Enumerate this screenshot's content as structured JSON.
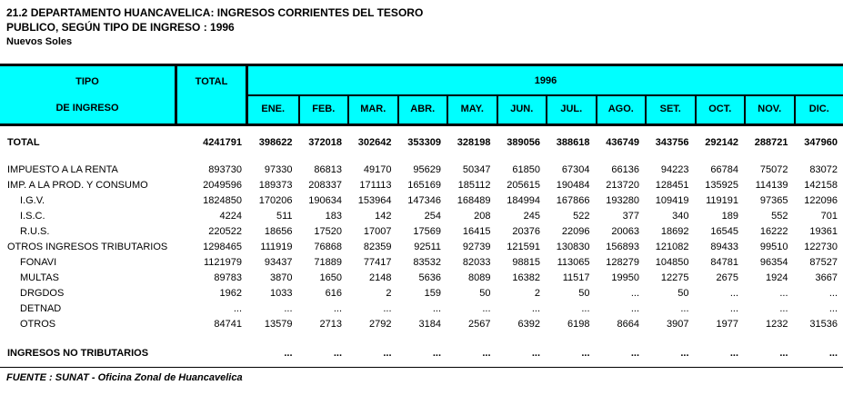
{
  "title": {
    "line1": "21.2 DEPARTAMENTO HUANCAVELICA: INGRESOS CORRIENTES DEL TESORO",
    "line2": "PUBLICO, SEGÚN TIPO DE INGRESO : 1996",
    "unit": "Nuevos Soles"
  },
  "colors": {
    "header_bg": "#00FFFF",
    "border": "#000000",
    "text": "#000000"
  },
  "table": {
    "header": {
      "tipo_line1": "TIPO",
      "tipo_line2": "DE INGRESO",
      "total_label": "TOTAL",
      "year": "1996",
      "months": [
        "ENE.",
        "FEB.",
        "MAR.",
        "ABR.",
        "MAY.",
        "JUN.",
        "JUL.",
        "AGO.",
        "SET.",
        "OCT.",
        "NOV.",
        "DIC."
      ]
    },
    "rows": [
      {
        "label": "TOTAL",
        "bold": true,
        "indent": false,
        "total": "4241791",
        "values": [
          "398622",
          "372018",
          "302642",
          "353309",
          "328198",
          "389056",
          "388618",
          "436749",
          "343756",
          "292142",
          "288721",
          "347960"
        ]
      },
      {
        "label": "IMPUESTO A LA RENTA",
        "bold": false,
        "indent": false,
        "total": "893730",
        "values": [
          "97330",
          "86813",
          "49170",
          "95629",
          "50347",
          "61850",
          "67304",
          "66136",
          "94223",
          "66784",
          "75072",
          "83072"
        ]
      },
      {
        "label": "IMP. A LA PROD. Y CONSUMO",
        "bold": false,
        "indent": false,
        "total": "2049596",
        "values": [
          "189373",
          "208337",
          "171113",
          "165169",
          "185112",
          "205615",
          "190484",
          "213720",
          "128451",
          "135925",
          "114139",
          "142158"
        ]
      },
      {
        "label": "I.G.V.",
        "bold": false,
        "indent": true,
        "total": "1824850",
        "values": [
          "170206",
          "190634",
          "153964",
          "147346",
          "168489",
          "184994",
          "167866",
          "193280",
          "109419",
          "119191",
          "97365",
          "122096"
        ]
      },
      {
        "label": "I.S.C.",
        "bold": false,
        "indent": true,
        "total": "4224",
        "values": [
          "511",
          "183",
          "142",
          "254",
          "208",
          "245",
          "522",
          "377",
          "340",
          "189",
          "552",
          "701"
        ]
      },
      {
        "label": "R.U.S.",
        "bold": false,
        "indent": true,
        "total": "220522",
        "values": [
          "18656",
          "17520",
          "17007",
          "17569",
          "16415",
          "20376",
          "22096",
          "20063",
          "18692",
          "16545",
          "16222",
          "19361"
        ]
      },
      {
        "label": "OTROS INGRESOS TRIBUTARIOS",
        "bold": false,
        "indent": false,
        "total": "1298465",
        "values": [
          "111919",
          "76868",
          "82359",
          "92511",
          "92739",
          "121591",
          "130830",
          "156893",
          "121082",
          "89433",
          "99510",
          "122730"
        ]
      },
      {
        "label": "FONAVI",
        "bold": false,
        "indent": true,
        "total": "1121979",
        "values": [
          "93437",
          "71889",
          "77417",
          "83532",
          "82033",
          "98815",
          "113065",
          "128279",
          "104850",
          "84781",
          "96354",
          "87527"
        ]
      },
      {
        "label": "MULTAS",
        "bold": false,
        "indent": true,
        "total": "89783",
        "values": [
          "3870",
          "1650",
          "2148",
          "5636",
          "8089",
          "16382",
          "11517",
          "19950",
          "12275",
          "2675",
          "1924",
          "3667"
        ]
      },
      {
        "label": "DRGDOS",
        "bold": false,
        "indent": true,
        "total": "1962",
        "values": [
          "1033",
          "616",
          "2",
          "159",
          "50",
          "2",
          "50",
          "...",
          "50",
          "...",
          "...",
          "..."
        ]
      },
      {
        "label": "DETNAD",
        "bold": false,
        "indent": true,
        "total": "...",
        "values": [
          "...",
          "...",
          "...",
          "...",
          "...",
          "...",
          "...",
          "...",
          "...",
          "...",
          "...",
          "..."
        ]
      },
      {
        "label": "OTROS",
        "bold": false,
        "indent": true,
        "total": "84741",
        "values": [
          "13579",
          "2713",
          "2792",
          "3184",
          "2567",
          "6392",
          "6198",
          "8664",
          "3907",
          "1977",
          "1232",
          "31536"
        ]
      },
      {
        "label": "INGRESOS NO TRIBUTARIOS",
        "bold": true,
        "indent": false,
        "total": "",
        "values": [
          "...",
          "...",
          "...",
          "...",
          "...",
          "...",
          "...",
          "...",
          "...",
          "...",
          "...",
          "..."
        ]
      }
    ]
  },
  "footer": {
    "source": "FUENTE : SUNAT - Oficina Zonal de Huancavelica"
  }
}
